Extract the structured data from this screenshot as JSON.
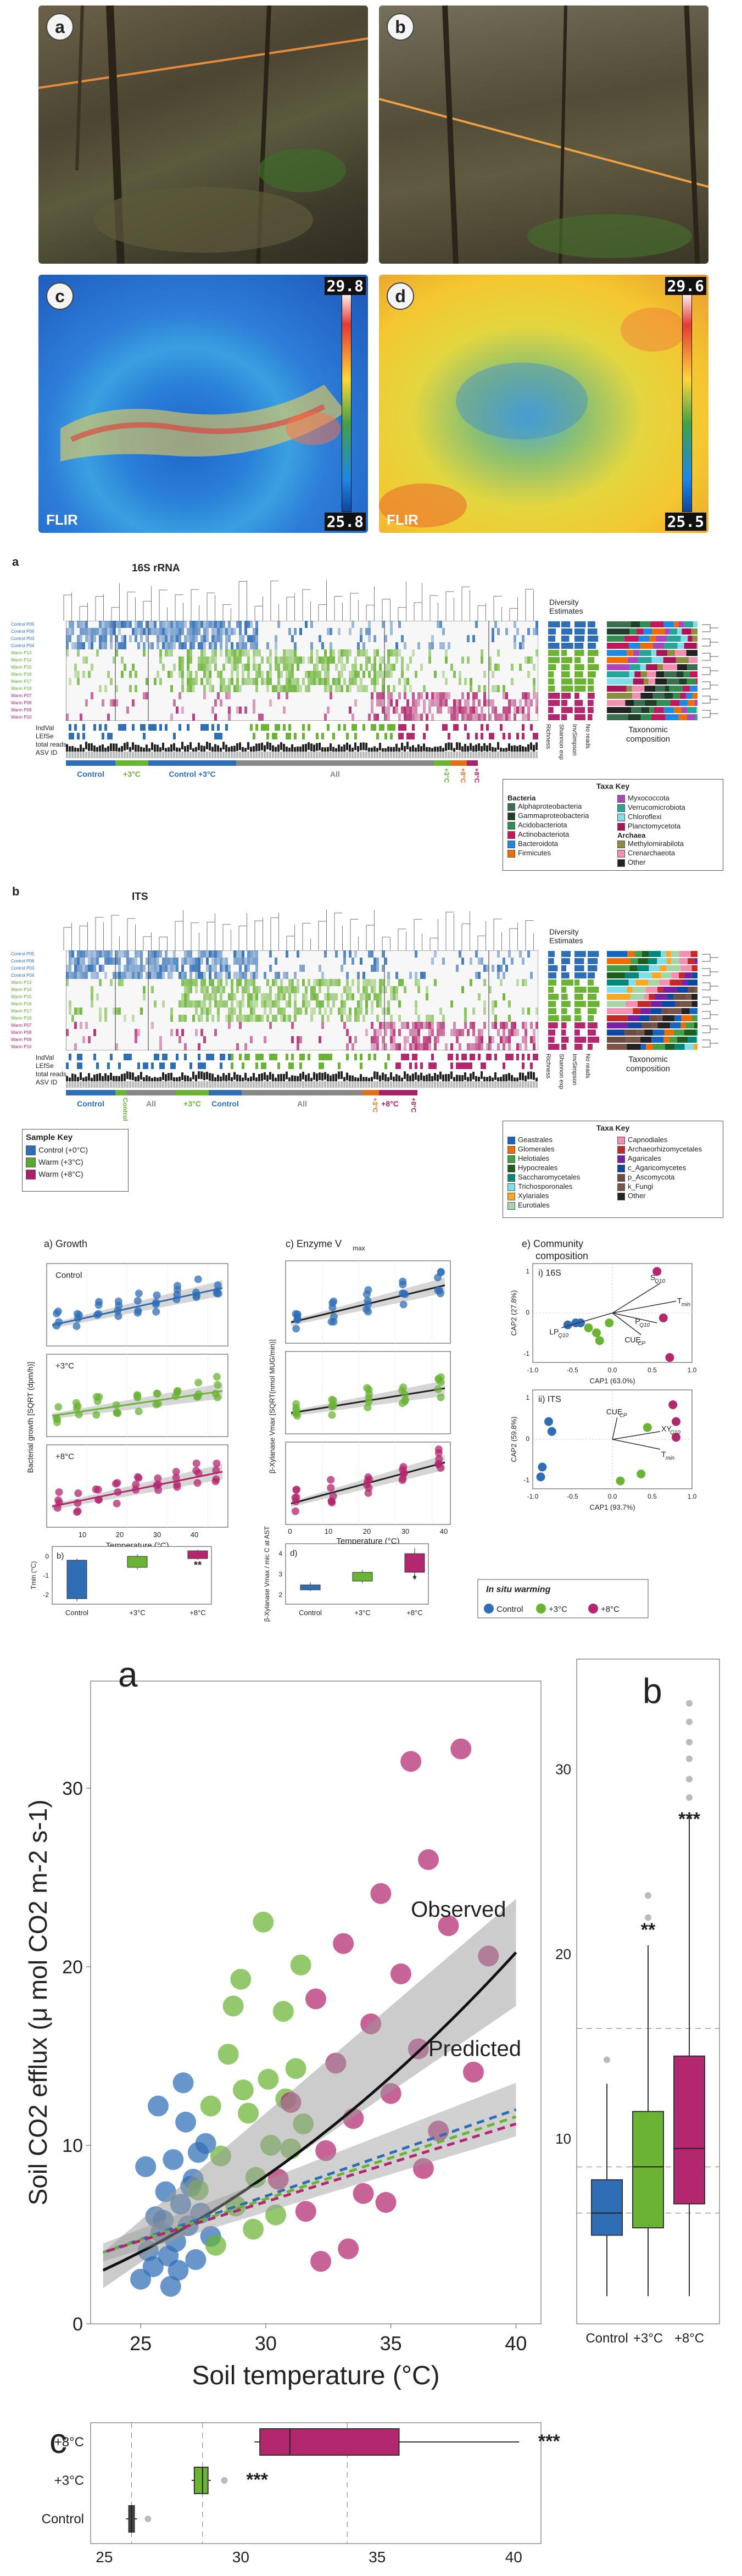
{
  "fig1": {
    "photos": [
      {
        "label": "a"
      },
      {
        "label": "b"
      },
      {
        "label": "c",
        "scale_max": "29.8",
        "scale_min": "25.8",
        "brand": "FLIR"
      },
      {
        "label": "d",
        "scale_max": "29.6",
        "scale_min": "25.5",
        "brand": "FLIR"
      }
    ]
  },
  "fig2": {
    "panel_a": {
      "label": "a",
      "title": "16S rRNA",
      "rows": [
        "Control P05",
        "Control P06",
        "Control P03",
        "Control P04",
        "Warm P13",
        "Warm P14",
        "Warm P15",
        "Warm P16",
        "Warm P17",
        "Warm P18",
        "Warm P07",
        "Warm P08",
        "Warm P09",
        "Warm P10"
      ],
      "track_labels": [
        "IndVal",
        "LEfSe",
        "total reads",
        "ASV ID"
      ],
      "div_title": "Diversity Estimates",
      "div_cols": [
        "Richness",
        "Shannon exp",
        "InvSimpson",
        "No reads"
      ],
      "tax_label": "Taxonomic composition",
      "groups": [
        "Control",
        "+3°C",
        "Control +3°C",
        "All",
        "+3°C",
        "+8°C",
        "+8°C"
      ],
      "key_title": "Taxa Key",
      "key_bacteria": "Bacteria",
      "key_archaea": "Archaea",
      "key_items": [
        {
          "name": "Alphaproteobacteria",
          "color": "#3a6f4f"
        },
        {
          "name": "Gammaproteobacteria",
          "color": "#1f3f2a"
        },
        {
          "name": "Acidobacteriota",
          "color": "#2f8f4f"
        },
        {
          "name": "Actinobacteriota",
          "color": "#c2185b"
        },
        {
          "name": "Bacteroidota",
          "color": "#1e88e5"
        },
        {
          "name": "Firmicutes",
          "color": "#ef6c00"
        },
        {
          "name": "Myxococcota",
          "color": "#ab47bc"
        },
        {
          "name": "Verrucomicrobiota",
          "color": "#26a69a"
        },
        {
          "name": "Chloroflexi",
          "color": "#80deea"
        },
        {
          "name": "Planctomycetota",
          "color": "#ad1457"
        },
        {
          "name": "Methylomirabilota",
          "color": "#8d8d3f"
        },
        {
          "name": "Crenarchaeota",
          "color": "#f48fb1"
        },
        {
          "name": "Other",
          "color": "#222222"
        }
      ]
    },
    "panel_b": {
      "label": "b",
      "title": "ITS",
      "rows": [
        "Control P05",
        "Control P06",
        "Control P03",
        "Control P04",
        "Warm P13",
        "Warm P14",
        "Warm P15",
        "Warm P16",
        "Warm P17",
        "Warm P18",
        "Warm P07",
        "Warm P08",
        "Warm P09",
        "Warm P10"
      ],
      "track_labels": [
        "IndVal",
        "LEfSe",
        "total reads",
        "ASV ID"
      ],
      "div_title": "Diversity Estimates",
      "div_cols": [
        "Richness",
        "Shannon exp",
        "InvSimpson",
        "No reads"
      ],
      "tax_label": "Taxonomic composition",
      "groups": [
        "Control",
        "Control +3°C",
        "All",
        "+3°C",
        "Control",
        "All",
        "+3°C",
        "+8°C",
        "+8°C"
      ],
      "key_title": "Taxa Key",
      "key_items": [
        {
          "name": "Geastrales",
          "color": "#1565c0"
        },
        {
          "name": "Glomerales",
          "color": "#ef6c00"
        },
        {
          "name": "Helotiales",
          "color": "#43a047"
        },
        {
          "name": "Hypocreales",
          "color": "#1b5e20"
        },
        {
          "name": "Saccharomycetales",
          "color": "#00897b"
        },
        {
          "name": "Trichosporonales",
          "color": "#80deea"
        },
        {
          "name": "Xylariales",
          "color": "#f9a825"
        },
        {
          "name": "Eurotiales",
          "color": "#a5d6a7"
        },
        {
          "name": "Capnodiales",
          "color": "#f48fb1"
        },
        {
          "name": "Archaeorhizomycetales",
          "color": "#c62828"
        },
        {
          "name": "Agaricales",
          "color": "#7b1fa2"
        },
        {
          "name": "c_Agaricomycetes",
          "color": "#0d47a1"
        },
        {
          "name": "p_Ascomycota",
          "color": "#6d4c41"
        },
        {
          "name": "k_Fungi",
          "color": "#795548"
        },
        {
          "name": "Other",
          "color": "#222222"
        }
      ]
    },
    "sample_key": {
      "title": "Sample Key",
      "items": [
        {
          "name": "Control (+0°C)",
          "color": "#2f6db5"
        },
        {
          "name": "Warm (+3°C)",
          "color": "#5aa832"
        },
        {
          "name": "Warm (+8°C)",
          "color": "#a8226a"
        }
      ]
    }
  },
  "fig3": {
    "colors": {
      "control": "#2f6db5",
      "plus3": "#6ab335",
      "plus8": "#b2276e"
    },
    "growth_title": "a) Growth",
    "enzyme_title": "c) Enzyme V",
    "enzyme_sub": "max",
    "community_title": "e) Community composition",
    "rows": [
      "Control",
      "+3°C",
      "+8°C"
    ],
    "growth_ylabel": "Bacterial growth [SQRT (dpm/h)]",
    "enzyme_ylabel": "β-Xylanase Vmax [SQRT(nmol MUG/min)]",
    "xlabel": "Temperature (°C)",
    "x_ticks": [
      "10",
      "20",
      "30",
      "40"
    ],
    "enz_x_ticks": [
      "0",
      "10",
      "20",
      "30",
      "40"
    ],
    "panel_b_title": "b)",
    "panel_b_ylabel": "Tmin (°C)",
    "panel_b_ticks": [
      "0",
      "-1",
      "-2"
    ],
    "panel_b_sig": "**",
    "panel_d_title": "d)",
    "panel_d_ylabel": "β-Xylanase Vmax / mic C at AST",
    "panel_d_ticks": [
      "4",
      "3",
      "2"
    ],
    "panel_d_sig": "*",
    "box_x": [
      "Control",
      "+3°C",
      "+8°C"
    ],
    "ord_16s": {
      "title": "i) 16S",
      "xlabel": "CAP1 (63.0%)",
      "ylabel": "CAP2 (27.8%)",
      "x_ticks": [
        "-1.0",
        "-0.5",
        "0.0",
        "0.5",
        "1.0"
      ],
      "y_ticks": [
        "1",
        "0",
        "-1"
      ],
      "arrows": [
        {
          "label": "S",
          "sub": "Q10"
        },
        {
          "label": "T",
          "sub": "min"
        },
        {
          "label": "P",
          "sub": "Q10"
        },
        {
          "label": "CUE",
          "sub": "CP"
        },
        {
          "label": "LP",
          "sub": "Q10"
        }
      ]
    },
    "ord_its": {
      "title": "ii) ITS",
      "xlabel": "CAP1 (93.7%)",
      "ylabel": "CAP2 (59.8%)",
      "x_ticks": [
        "-1.0",
        "-0.5",
        "0.0",
        "0.5",
        "1.0"
      ],
      "y_ticks": [
        "1",
        "0",
        "-1"
      ],
      "arrows": [
        {
          "label": "CUE",
          "sub": "CP"
        },
        {
          "label": "XY",
          "sub": "Q10"
        },
        {
          "label": "T",
          "sub": "min"
        }
      ]
    },
    "legend_title": "In situ warming",
    "legend_items": [
      "Control",
      "+3°C",
      "+8°C"
    ]
  },
  "fig4": {
    "panel_a_label": "a",
    "panel_b_label": "b",
    "panel_c_label": "c",
    "observed_label": "Observed",
    "predicted_label": "Predicted",
    "ylabel": "Soil CO2 efflux (μ mol CO2 m-2 s-1)",
    "xlabel": "Soil temperature (°C)",
    "box_labels": [
      "Control",
      "+3°C",
      "+8°C"
    ],
    "b_sig": [
      "**",
      "***"
    ],
    "c_sig": [
      "***",
      "***"
    ],
    "c_rows": [
      "+8°C",
      "+3°C",
      "Control"
    ]
  },
  "chart_data": [
    {
      "type": "scatter",
      "title": "",
      "xlabel": "Soil temperature (°C)",
      "ylabel": "Soil CO2 efflux (μ mol CO2 m-2 s-1)",
      "xlim": [
        23,
        41
      ],
      "ylim": [
        0,
        36
      ],
      "x_ticks": [
        25,
        30,
        35,
        40
      ],
      "y_ticks": [
        0,
        10,
        20,
        30
      ],
      "series": [
        {
          "name": "Control",
          "points": [
            [
              25.0,
              2.5
            ],
            [
              25.3,
              4.1
            ],
            [
              25.5,
              3.2
            ],
            [
              25.6,
              6.0
            ],
            [
              25.8,
              5.1
            ],
            [
              26.0,
              7.4
            ],
            [
              26.1,
              3.8
            ],
            [
              26.3,
              9.2
            ],
            [
              26.4,
              4.6
            ],
            [
              26.6,
              6.7
            ],
            [
              26.8,
              11.3
            ],
            [
              26.9,
              5.5
            ],
            [
              27.1,
              8.1
            ],
            [
              27.2,
              3.6
            ],
            [
              27.4,
              6.2
            ],
            [
              27.6,
              10.1
            ],
            [
              27.8,
              4.9
            ],
            [
              25.2,
              8.8
            ],
            [
              25.7,
              12.2
            ],
            [
              26.2,
              2.1
            ],
            [
              26.7,
              13.5
            ],
            [
              27.0,
              7.7
            ],
            [
              25.9,
              5.8
            ],
            [
              26.5,
              3.0
            ],
            [
              27.3,
              9.6
            ]
          ]
        },
        {
          "name": "+3°C",
          "points": [
            [
              27.3,
              7.5
            ],
            [
              27.8,
              12.2
            ],
            [
              28.2,
              9.4
            ],
            [
              28.5,
              15.1
            ],
            [
              28.8,
              6.6
            ],
            [
              29.0,
              19.3
            ],
            [
              29.3,
              11.8
            ],
            [
              29.6,
              8.2
            ],
            [
              29.9,
              22.5
            ],
            [
              30.1,
              13.7
            ],
            [
              30.4,
              6.1
            ],
            [
              30.7,
              17.5
            ],
            [
              31.0,
              9.8
            ],
            [
              31.2,
              14.3
            ],
            [
              31.5,
              11.2
            ],
            [
              28.0,
              4.4
            ],
            [
              29.1,
              13.1
            ],
            [
              30.2,
              10.0
            ],
            [
              31.4,
              20.1
            ],
            [
              28.7,
              17.8
            ],
            [
              29.5,
              5.3
            ],
            [
              30.8,
              12.6
            ]
          ]
        },
        {
          "name": "+8°C",
          "points": [
            [
              30.5,
              8.1
            ],
            [
              31.0,
              12.4
            ],
            [
              31.6,
              6.3
            ],
            [
              32.0,
              18.2
            ],
            [
              32.4,
              9.7
            ],
            [
              32.8,
              14.6
            ],
            [
              33.1,
              21.3
            ],
            [
              33.5,
              11.5
            ],
            [
              33.9,
              7.3
            ],
            [
              34.2,
              16.8
            ],
            [
              34.6,
              24.1
            ],
            [
              35.0,
              12.9
            ],
            [
              35.4,
              19.6
            ],
            [
              35.8,
              31.5
            ],
            [
              36.1,
              15.4
            ],
            [
              36.5,
              26.0
            ],
            [
              36.9,
              10.8
            ],
            [
              37.3,
              22.3
            ],
            [
              37.8,
              32.2
            ],
            [
              38.3,
              14.1
            ],
            [
              38.9,
              20.6
            ],
            [
              33.3,
              4.2
            ],
            [
              34.8,
              6.8
            ],
            [
              36.3,
              8.7
            ],
            [
              32.2,
              3.5
            ]
          ]
        }
      ],
      "lines": [
        {
          "name": "Observed",
          "x": [
            23.5,
            40
          ],
          "y": [
            3.0,
            20.8
          ]
        },
        {
          "name": "Predicted",
          "x": [
            23.5,
            40
          ],
          "y": [
            4.0,
            12.0
          ]
        }
      ]
    },
    {
      "type": "box",
      "categories": [
        "Control",
        "+3°C",
        "+8°C"
      ],
      "ylim": [
        0,
        36
      ],
      "y_ticks": [
        10,
        20,
        30
      ],
      "boxes": [
        {
          "q1": 4.8,
          "median": 6.0,
          "q3": 7.8,
          "whisker_low": 1.5,
          "whisker_high": 13.0
        },
        {
          "q1": 5.2,
          "median": 8.5,
          "q3": 11.5,
          "whisker_low": 1.5,
          "whisker_high": 20.5
        },
        {
          "q1": 6.5,
          "median": 9.5,
          "q3": 14.5,
          "whisker_low": 1.5,
          "whisker_high": 27.5
        }
      ]
    },
    {
      "type": "box",
      "orientation": "horizontal",
      "categories": [
        "+8°C",
        "+3°C",
        "Control"
      ],
      "xlim": [
        24.5,
        41
      ],
      "x_ticks": [
        25,
        30,
        35,
        40
      ],
      "boxes": [
        {
          "q1": 30.7,
          "median": 31.8,
          "q3": 35.8,
          "whisker_low": 30.5,
          "whisker_high": 40.2
        },
        {
          "q1": 28.3,
          "median": 28.6,
          "q3": 28.8,
          "whisker_low": 28.2,
          "whisker_high": 28.9
        },
        {
          "q1": 25.9,
          "median": 26.0,
          "q3": 26.1,
          "whisker_low": 25.8,
          "whisker_high": 26.2
        }
      ]
    }
  ]
}
